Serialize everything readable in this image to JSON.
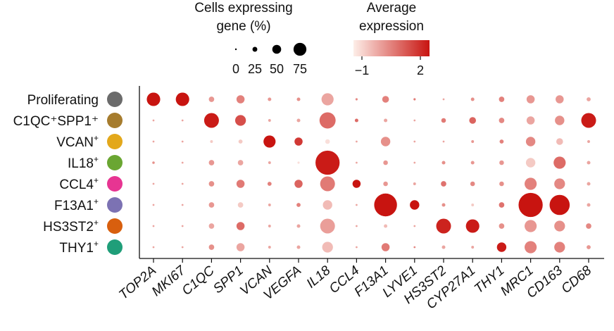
{
  "chart_data": {
    "type": "dotplot",
    "title": "",
    "legend": {
      "size_title_line1": "Cells expressing",
      "size_title_line2": "gene (%)",
      "size_ticks": [
        "0",
        "25",
        "50",
        "75"
      ],
      "size_values": [
        0,
        25,
        50,
        75
      ],
      "color_title_line1": "Average",
      "color_title_line2": "expression",
      "color_ticks": [
        "−1",
        "2"
      ],
      "color_range": [
        -1,
        2
      ],
      "color_low": "#fdeee8",
      "color_high": "#c81410",
      "placement": "top-right"
    },
    "rows": [
      {
        "name": "Proliferating",
        "sup": [],
        "color": "#6b6b6b"
      },
      {
        "name": "C1QC⁺SPP1⁺",
        "sup": [],
        "color": "#a67c2e"
      },
      {
        "name": "VCAN",
        "sup": [
          "+"
        ],
        "color": "#e3a81b"
      },
      {
        "name": "IL18",
        "sup": [
          "+"
        ],
        "color": "#6aa632"
      },
      {
        "name": "CCL4",
        "sup": [
          "+"
        ],
        "color": "#e73592"
      },
      {
        "name": "F13A1",
        "sup": [
          "+"
        ],
        "color": "#7c72b3"
      },
      {
        "name": "HS3ST2",
        "sup": [
          "+"
        ],
        "color": "#d85f0e"
      },
      {
        "name": "THY1",
        "sup": [
          "+"
        ],
        "color": "#1f9e79"
      }
    ],
    "genes": [
      "TOP2A",
      "MKI67",
      "C1QC",
      "SPP1",
      "VCAN",
      "VEGFA",
      "IL18",
      "CCL4",
      "F13A1",
      "LYVE1",
      "HS3ST2",
      "CYP27A1",
      "THY1",
      "MRC1",
      "CD163",
      "CD68"
    ],
    "pct": [
      [
        45,
        45,
        15,
        25,
        8,
        8,
        40,
        3,
        20,
        3,
        2,
        8,
        15,
        25,
        25,
        10
      ],
      [
        2,
        2,
        50,
        35,
        5,
        8,
        55,
        8,
        8,
        2,
        12,
        20,
        15,
        25,
        30,
        50
      ],
      [
        2,
        2,
        5,
        10,
        40,
        25,
        12,
        2,
        30,
        2,
        2,
        5,
        10,
        30,
        20,
        5
      ],
      [
        4,
        2,
        15,
        15,
        5,
        3,
        85,
        2,
        12,
        2,
        8,
        8,
        12,
        30,
        40,
        8
      ],
      [
        2,
        2,
        15,
        25,
        10,
        25,
        50,
        25,
        12,
        5,
        15,
        12,
        12,
        40,
        35,
        8
      ],
      [
        2,
        2,
        15,
        15,
        5,
        10,
        30,
        2,
        80,
        30,
        8,
        5,
        15,
        85,
        70,
        8
      ],
      [
        2,
        2,
        15,
        25,
        5,
        8,
        50,
        2,
        8,
        2,
        50,
        45,
        15,
        40,
        35,
        15
      ],
      [
        2,
        2,
        15,
        25,
        5,
        8,
        35,
        2,
        25,
        2,
        8,
        5,
        30,
        40,
        35,
        10
      ]
    ],
    "expr": [
      [
        2.0,
        2.0,
        0.2,
        0.5,
        0.2,
        0.3,
        0.0,
        0.4,
        0.5,
        0.6,
        0.0,
        0.3,
        0.5,
        0.2,
        0.2,
        0.0
      ],
      [
        0.0,
        0.0,
        1.9,
        1.2,
        0.0,
        0.0,
        0.8,
        0.8,
        0.0,
        0.0,
        0.6,
        0.9,
        0.4,
        0.0,
        0.3,
        1.9
      ],
      [
        0.0,
        0.0,
        -0.5,
        -0.5,
        2.0,
        1.5,
        -0.8,
        0.0,
        0.3,
        0.0,
        0.0,
        0.2,
        0.5,
        0.4,
        -0.3,
        0.0
      ],
      [
        0.3,
        0.0,
        0.2,
        0.0,
        0.0,
        -0.8,
        1.9,
        0.0,
        0.2,
        0.0,
        0.3,
        0.2,
        0.2,
        -0.5,
        0.8,
        0.0
      ],
      [
        0.0,
        0.0,
        0.3,
        0.6,
        0.5,
        0.9,
        0.6,
        2.0,
        0.2,
        0.0,
        0.7,
        0.4,
        0.3,
        0.5,
        0.4,
        0.0
      ],
      [
        0.0,
        0.0,
        0.2,
        -0.5,
        0.0,
        0.5,
        -0.3,
        0.0,
        2.0,
        2.0,
        0.3,
        -0.5,
        0.7,
        2.0,
        2.0,
        0.0
      ],
      [
        0.0,
        0.0,
        0.0,
        0.8,
        0.0,
        0.0,
        0.1,
        0.0,
        -0.3,
        0.0,
        1.8,
        1.9,
        0.3,
        0.2,
        0.3,
        0.4
      ],
      [
        0.0,
        0.0,
        0.3,
        0.0,
        0.0,
        0.0,
        -0.3,
        0.0,
        0.6,
        0.4,
        0.0,
        0.0,
        1.9,
        0.5,
        0.5,
        0.2
      ]
    ]
  }
}
